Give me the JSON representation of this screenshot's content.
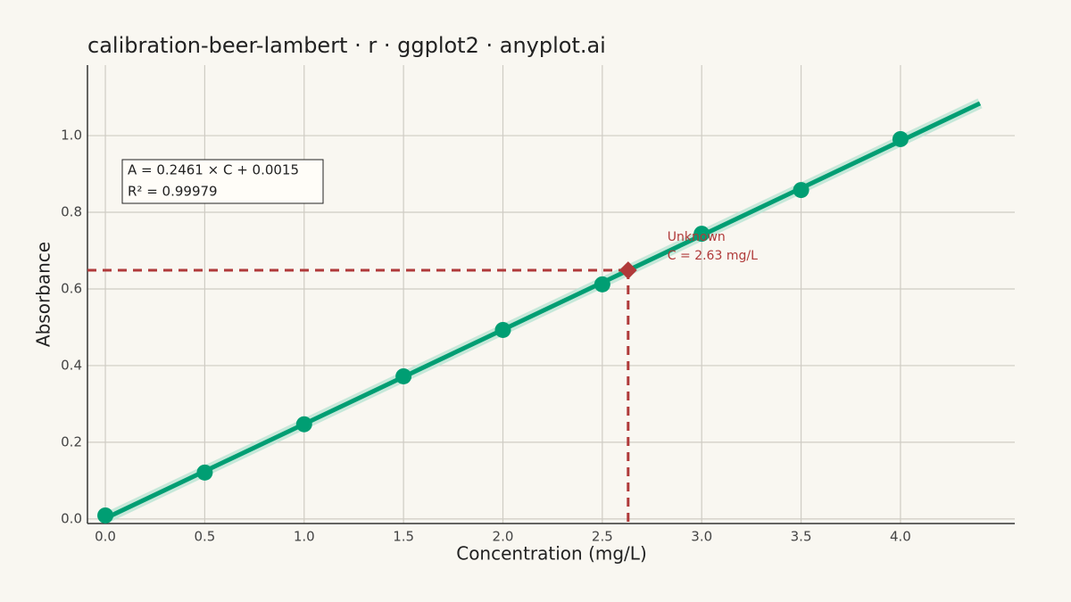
{
  "chart_data": {
    "type": "scatter",
    "title": "calibration-beer-lambert · r · ggplot2 · anyplot.ai",
    "x_label": "Concentration (mg/L)",
    "y_label": "Absorbance",
    "x": [
      0,
      0.5,
      1.0,
      1.5,
      2.0,
      2.5,
      3.0,
      3.5,
      4.0
    ],
    "values": [
      0.009,
      0.121,
      0.247,
      0.372,
      0.493,
      0.612,
      0.744,
      0.858,
      0.991
    ],
    "color": "#009e73",
    "fit": {
      "x": [
        0,
        4.4
      ],
      "values": [
        0.0015,
        1.0843
      ],
      "color": "#009e73",
      "band_color": "#b9e3d3"
    },
    "unknown": {
      "x": 2.63,
      "value": 0.6487,
      "color": "#b03a3a",
      "labels": [
        "Unknown",
        "C = 2.63 mg/L"
      ]
    },
    "equation": [
      "A = 0.2461 × C + 0.0015",
      "R² = 0.99979"
    ],
    "xlim": [
      -0.09,
      4.575
    ],
    "ylim": [
      -0.012,
      1.184
    ],
    "xticks": [
      {
        "value": 0,
        "label": "0.0"
      },
      {
        "value": 0.5,
        "label": "0.5"
      },
      {
        "value": 1,
        "label": "1.0"
      },
      {
        "value": 1.5,
        "label": "1.5"
      },
      {
        "value": 2,
        "label": "2.0"
      },
      {
        "value": 2.5,
        "label": "2.5"
      },
      {
        "value": 3,
        "label": "3.0"
      },
      {
        "value": 3.5,
        "label": "3.5"
      },
      {
        "value": 4,
        "label": "4.0"
      }
    ],
    "yticks": [
      {
        "value": 0,
        "label": "0.0"
      },
      {
        "value": 0.2,
        "label": "0.2"
      },
      {
        "value": 0.4,
        "label": "0.4"
      },
      {
        "value": 0.6,
        "label": "0.6"
      },
      {
        "value": 0.8,
        "label": "0.8"
      },
      {
        "value": 1,
        "label": "1.0"
      }
    ],
    "grid": true
  }
}
